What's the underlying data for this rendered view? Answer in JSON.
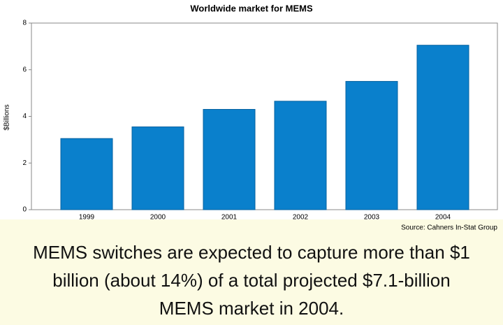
{
  "chart_data": {
    "type": "bar",
    "title": "Worldwide market for MEMS",
    "y_label": "$Billions",
    "categories": [
      "1999",
      "2000",
      "2001",
      "2002",
      "2003",
      "2004"
    ],
    "values": [
      3.05,
      3.55,
      4.3,
      4.65,
      5.5,
      7.05
    ],
    "color": "#0a80cc",
    "ylim": [
      0,
      8
    ],
    "yticks": [
      0,
      2,
      4,
      6,
      8
    ],
    "grid": false,
    "source": "Source: Cahners In-Stat Group",
    "caption_lines": [
      "MEMS switches are expected to capture more than $1",
      "billion (about 14%) of a total projected $7.1-billion",
      "MEMS market in 2004."
    ]
  }
}
